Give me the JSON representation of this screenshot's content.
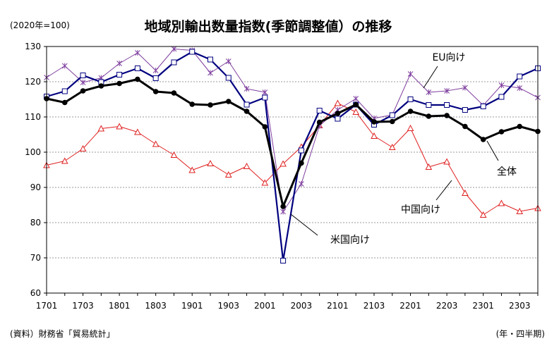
{
  "chart_data": {
    "type": "line",
    "title": "地域別輸出数量指数(季節調整値）の推移",
    "unit_note": "(2020年=100)",
    "source_note": "(資料）財務省「貿易統計」",
    "period_note": "(年・四半期)",
    "ylim": [
      60,
      130
    ],
    "yticks": [
      60,
      70,
      80,
      90,
      100,
      110,
      120,
      130
    ],
    "xtick_labels": [
      "1701",
      "1703",
      "1801",
      "1803",
      "1901",
      "1903",
      "2001",
      "2003",
      "2101",
      "2103",
      "2201",
      "2203",
      "2301",
      "2303"
    ],
    "grid": true,
    "x": [
      "1701",
      "1702",
      "1703",
      "1704",
      "1801",
      "1802",
      "1803",
      "1804",
      "1901",
      "1902",
      "1903",
      "1904",
      "2001",
      "2002",
      "2003",
      "2004",
      "2101",
      "2102",
      "2103",
      "2104",
      "2201",
      "2202",
      "2203",
      "2204",
      "2301",
      "2302",
      "2303",
      "2304"
    ],
    "series": [
      {
        "name": "全体",
        "color": "#000000",
        "marker": "filled-circle",
        "values": [
          115.2,
          114.1,
          117.4,
          118.8,
          119.5,
          120.7,
          117.2,
          116.8,
          113.6,
          113.4,
          114.4,
          111.6,
          107.2,
          84.6,
          96.9,
          108.5,
          111.0,
          113.5,
          108.6,
          108.7,
          111.6,
          110.2,
          110.4,
          107.3,
          103.6,
          105.8,
          107.3,
          105.9
        ]
      },
      {
        "name": "米国向け",
        "color": "#00007f",
        "marker": "open-square",
        "values": [
          115.8,
          117.3,
          121.8,
          119.9,
          122.0,
          123.8,
          121.0,
          125.5,
          128.5,
          126.3,
          121.1,
          113.5,
          115.5,
          69.2,
          100.5,
          111.8,
          109.5,
          113.5,
          107.8,
          110.5,
          115.0,
          113.4,
          113.4,
          112.0,
          113.0,
          115.7,
          121.5,
          123.8
        ]
      },
      {
        "name": "EU向け",
        "color": "#7f3f9f",
        "marker": "asterisk",
        "values": [
          121.2,
          124.5,
          119.8,
          121.1,
          125.2,
          128.2,
          123.2,
          129.3,
          128.9,
          122.5,
          125.8,
          118.0,
          117.0,
          83.1,
          91.0,
          107.5,
          112.0,
          115.2,
          109.6,
          110.6,
          122.2,
          117.0,
          117.4,
          118.3,
          113.3,
          119.0,
          118.2,
          115.5
        ]
      },
      {
        "name": "中国向け",
        "color": "#e02020",
        "marker": "open-triangle",
        "values": [
          96.3,
          97.5,
          101.0,
          106.7,
          107.3,
          105.7,
          102.3,
          99.2,
          94.9,
          96.8,
          93.6,
          96.0,
          91.3,
          96.7,
          101.5,
          107.6,
          113.9,
          111.4,
          104.6,
          101.4,
          106.8,
          95.8,
          97.3,
          88.4,
          82.2,
          85.5,
          83.2,
          84.1
        ]
      }
    ],
    "annotations": [
      {
        "text": "EU向け",
        "series": "EU向け"
      },
      {
        "text": "全体",
        "series": "全体"
      },
      {
        "text": "中国向け",
        "series": "中国向け"
      },
      {
        "text": "米国向け",
        "series": "米国向け"
      }
    ]
  }
}
